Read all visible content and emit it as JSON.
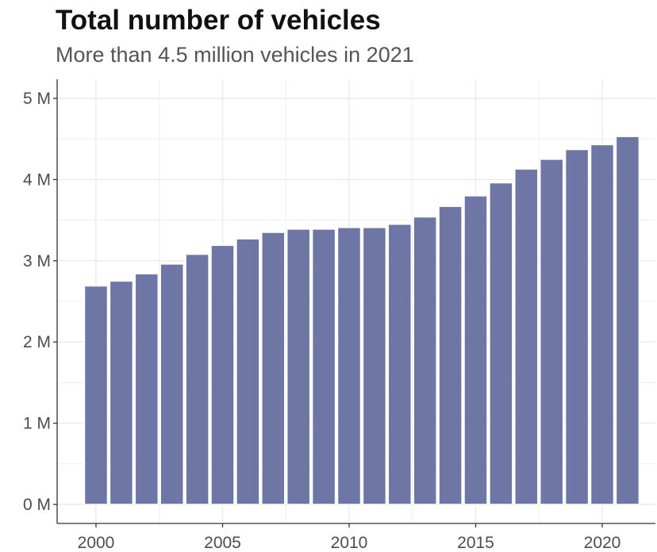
{
  "chart_data": {
    "type": "bar",
    "title": "Total number of vehicles",
    "subtitle": "More than 4.5 million vehicles in 2021",
    "xlabel": "",
    "ylabel": "",
    "categories": [
      2000,
      2001,
      2002,
      2003,
      2004,
      2005,
      2006,
      2007,
      2008,
      2009,
      2010,
      2011,
      2012,
      2013,
      2014,
      2015,
      2016,
      2017,
      2018,
      2019,
      2020,
      2021
    ],
    "values": [
      2.69,
      2.75,
      2.84,
      2.96,
      3.08,
      3.19,
      3.27,
      3.35,
      3.39,
      3.39,
      3.41,
      3.41,
      3.45,
      3.54,
      3.67,
      3.8,
      3.96,
      4.13,
      4.25,
      4.37,
      4.43,
      4.53
    ],
    "value_unit": "million vehicles",
    "ylim": [
      0,
      5.1
    ],
    "yticks": [
      0,
      1,
      2,
      3,
      4,
      5
    ],
    "ytick_labels": [
      "0 M",
      "1 M",
      "2 M",
      "3 M",
      "4 M",
      "5 M"
    ],
    "xticks": [
      2000,
      2005,
      2010,
      2015,
      2020
    ],
    "xtick_labels": [
      "2000",
      "2005",
      "2010",
      "2015",
      "2020"
    ],
    "grid": true,
    "legend": "none",
    "colors": {
      "bar": "#6e76a6",
      "bar_outline": "#ffffff",
      "grid": "#ebebeb",
      "axis": "#333333"
    }
  }
}
